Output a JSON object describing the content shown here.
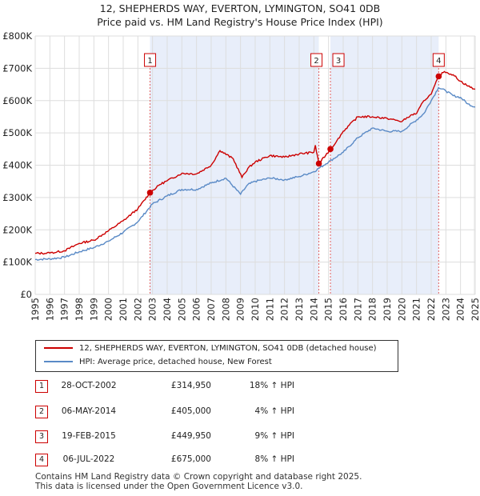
{
  "title_line1": "12, SHEPHERDS WAY, EVERTON, LYMINGTON, SO41 0DB",
  "title_line2": "Price paid vs. HM Land Registry's House Price Index (HPI)",
  "chart_data": {
    "type": "line",
    "title": "12, SHEPHERDS WAY, EVERTON, LYMINGTON, SO41 0DB — Price paid vs. HM Land Registry's House Price Index (HPI)",
    "xlim": [
      1995.0,
      2025.0
    ],
    "ylim": [
      0,
      800000
    ],
    "y_ticks": [
      0,
      100000,
      200000,
      300000,
      400000,
      500000,
      600000,
      700000,
      800000
    ],
    "y_tick_labels": [
      "£0",
      "£100K",
      "£200K",
      "£300K",
      "£400K",
      "£500K",
      "£600K",
      "£700K",
      "£800K"
    ],
    "x_ticks": [
      1995,
      1996,
      1997,
      1998,
      1999,
      2000,
      2001,
      2002,
      2003,
      2004,
      2005,
      2006,
      2007,
      2008,
      2009,
      2010,
      2011,
      2012,
      2013,
      2014,
      2015,
      2016,
      2017,
      2018,
      2019,
      2020,
      2021,
      2022,
      2023,
      2024,
      2025
    ],
    "series": [
      {
        "name": "12, SHEPHERDS WAY, EVERTON, LYMINGTON, SO41 0DB (detached house)",
        "color": "#cc0000",
        "x": [
          1995.0,
          1996.0,
          1997.0,
          1998.0,
          1999.0,
          2000.0,
          2001.0,
          2002.0,
          2002.83,
          2003.5,
          2004.0,
          2005.0,
          2006.0,
          2007.0,
          2007.6,
          2008.5,
          2009.1,
          2009.5,
          2010.0,
          2011.0,
          2012.0,
          2013.0,
          2014.0,
          2014.1,
          2014.34,
          2014.8,
          2015.13,
          2015.5,
          2016.0,
          2017.0,
          2018.0,
          2019.0,
          2020.0,
          2020.6,
          2021.0,
          2021.5,
          2022.0,
          2022.51,
          2022.9,
          2023.5,
          2024.0,
          2024.5,
          2025.0
        ],
        "y": [
          127000,
          128000,
          135000,
          158000,
          168000,
          197000,
          228000,
          265000,
          314950,
          340000,
          352000,
          375000,
          373000,
          400000,
          445000,
          420000,
          362000,
          390000,
          410000,
          430000,
          425000,
          435000,
          440000,
          462000,
          405000,
          430000,
          449950,
          470000,
          505000,
          550000,
          550000,
          545000,
          535000,
          555000,
          560000,
          600000,
          620000,
          675000,
          690000,
          680000,
          660000,
          645000,
          635000
        ]
      },
      {
        "name": "HPI: Average price, detached house, New Forest",
        "color": "#5a8ac6",
        "x": [
          1995.0,
          1996.0,
          1997.0,
          1998.0,
          1999.0,
          2000.0,
          2001.0,
          2002.0,
          2003.0,
          2004.0,
          2005.0,
          2006.0,
          2007.0,
          2008.0,
          2009.0,
          2009.5,
          2010.0,
          2011.0,
          2012.0,
          2013.0,
          2014.0,
          2015.0,
          2016.0,
          2017.0,
          2018.0,
          2019.0,
          2020.0,
          2021.0,
          2021.5,
          2022.0,
          2022.5,
          2023.0,
          2023.5,
          2024.0,
          2024.5,
          2025.0
        ],
        "y": [
          108000,
          110000,
          115000,
          132000,
          145000,
          165000,
          192000,
          225000,
          280000,
          305000,
          325000,
          325000,
          345000,
          360000,
          310000,
          340000,
          350000,
          360000,
          355000,
          365000,
          380000,
          410000,
          440000,
          485000,
          515000,
          505000,
          505000,
          540000,
          560000,
          600000,
          640000,
          630000,
          615000,
          610000,
          590000,
          580000
        ]
      }
    ],
    "sales": [
      {
        "num": "1",
        "x": 2002.83,
        "price": 314950
      },
      {
        "num": "2",
        "x": 2014.34,
        "price": 405000
      },
      {
        "num": "3",
        "x": 2015.13,
        "price": 449950
      },
      {
        "num": "4",
        "x": 2022.51,
        "price": 675000
      }
    ],
    "legend_position": "below chart"
  },
  "legend": {
    "property_label": "12, SHEPHERDS WAY, EVERTON, LYMINGTON, SO41 0DB (detached house)",
    "hpi_label": "HPI: Average price, detached house, New Forest"
  },
  "transactions": [
    {
      "num": "1",
      "date": "28-OCT-2002",
      "price": "£314,950",
      "hpi": "18% ↑ HPI"
    },
    {
      "num": "2",
      "date": "06-MAY-2014",
      "price": "£405,000",
      "hpi": "4% ↑ HPI"
    },
    {
      "num": "3",
      "date": "19-FEB-2015",
      "price": "£449,950",
      "hpi": "9% ↑ HPI"
    },
    {
      "num": "4",
      "date": "06-JUL-2022",
      "price": "£675,000",
      "hpi": "8% ↑ HPI"
    }
  ],
  "footer": {
    "line1": "Contains HM Land Registry data © Crown copyright and database right 2025.",
    "line2": "This data is licensed under the Open Government Licence v3.0."
  },
  "colors": {
    "property": "#cc0000",
    "hpi": "#5a8ac6",
    "shade": "#e8eefa",
    "grid": "#dddddd"
  }
}
